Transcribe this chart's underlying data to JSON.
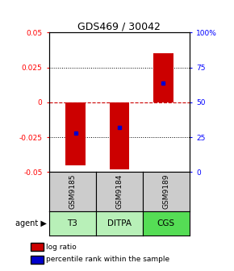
{
  "title": "GDS469 / 30042",
  "samples": [
    "GSM9185",
    "GSM9184",
    "GSM9189"
  ],
  "agents": [
    "T3",
    "DITPA",
    "CGS"
  ],
  "agent_colors": [
    "#b8f0b8",
    "#b8f0b8",
    "#55dd55"
  ],
  "bar_tops": [
    -0.045,
    -0.048,
    0.035
  ],
  "blue_values": [
    -0.022,
    -0.018,
    0.014
  ],
  "ylim": [
    -0.05,
    0.05
  ],
  "yticks_left": [
    -0.05,
    -0.025,
    0.0,
    0.025,
    0.05
  ],
  "ytick_labels_left": [
    "-0.05",
    "-0.025",
    "0",
    "0.025",
    "0.05"
  ],
  "yticks_right_vals": [
    -0.05,
    -0.025,
    0.0,
    0.025,
    0.05
  ],
  "ytick_labels_right": [
    "0",
    "25",
    "50",
    "75",
    "100%"
  ],
  "bar_color": "#cc0000",
  "blue_color": "#0000cc",
  "zero_line_color": "#cc0000",
  "sample_bg_color": "#cccccc",
  "legend_log_ratio": "log ratio",
  "legend_percentile": "percentile rank within the sample"
}
